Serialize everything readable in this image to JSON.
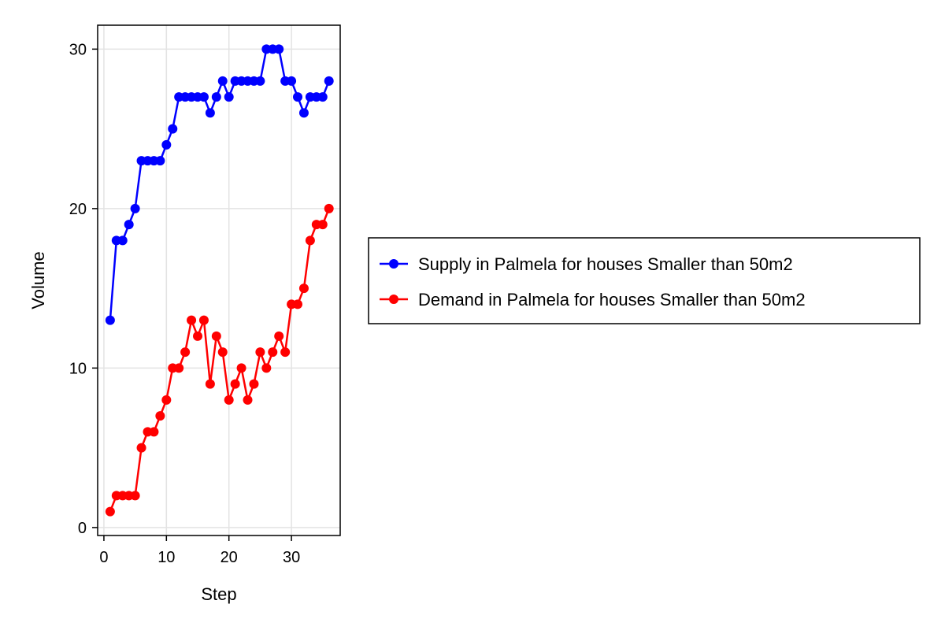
{
  "chart_data": {
    "type": "line",
    "title": "",
    "xlabel": "Step",
    "ylabel": "Volume",
    "xlim": [
      -1,
      37.8
    ],
    "ylim": [
      -0.5,
      31.5
    ],
    "xticks": [
      0,
      10,
      20,
      30
    ],
    "yticks": [
      0,
      10,
      20,
      30
    ],
    "grid": true,
    "legend_position": "right",
    "x": [
      1,
      2,
      3,
      4,
      5,
      6,
      7,
      8,
      9,
      10,
      11,
      12,
      13,
      14,
      15,
      16,
      17,
      18,
      19,
      20,
      21,
      22,
      23,
      24,
      25,
      26,
      27,
      28,
      29,
      30,
      31,
      32,
      33,
      34,
      35,
      36
    ],
    "series": [
      {
        "name": "Supply in Palmela for houses Smaller than 50m2",
        "color": "#0000ff",
        "values": [
          13,
          18,
          18,
          19,
          20,
          23,
          23,
          23,
          23,
          24,
          25,
          27,
          27,
          27,
          27,
          27,
          26,
          27,
          28,
          27,
          28,
          28,
          28,
          28,
          28,
          30,
          30,
          30,
          28,
          28,
          27,
          26,
          27,
          27,
          27,
          28
        ]
      },
      {
        "name": "Demand in Palmela for houses Smaller than 50m2",
        "color": "#ff0000",
        "values": [
          1,
          2,
          2,
          2,
          2,
          5,
          6,
          6,
          7,
          8,
          10,
          10,
          11,
          13,
          12,
          13,
          9,
          12,
          11,
          8,
          9,
          10,
          8,
          9,
          11,
          10,
          11,
          12,
          11,
          14,
          14,
          15,
          18,
          19,
          19,
          20
        ]
      }
    ]
  }
}
